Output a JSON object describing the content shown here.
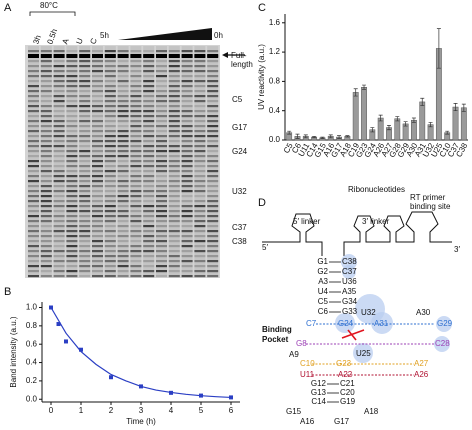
{
  "panels": [
    "A",
    "B",
    "C",
    "D"
  ],
  "gel": {
    "temperature": "80°C",
    "lanes": [
      "3h",
      "0.5h",
      "A",
      "U",
      "C",
      "5h",
      "0h"
    ],
    "full_length": [
      "Full-",
      "length"
    ],
    "bands": [
      "C5",
      "G17",
      "G24",
      "U32",
      "C37",
      "C38"
    ]
  },
  "chart_data": [
    {
      "type": "scatter",
      "xlabel": "Time (h)",
      "ylabel": "Band intensity (a.u.)",
      "xlim": [
        -0.3,
        6.3
      ],
      "ylim": [
        -0.03,
        1.06
      ],
      "xticks": [
        0,
        1,
        2,
        3,
        4,
        5,
        6
      ],
      "yticks": [
        {
          "value": 0,
          "label": "0.0"
        },
        {
          "value": 0.2,
          "label": "0.2"
        },
        {
          "value": 0.4,
          "label": "0.4"
        },
        {
          "value": 0.6,
          "label": "0.6"
        },
        {
          "value": 0.8,
          "label": "0.8"
        },
        {
          "value": 1.0,
          "label": "1.0"
        }
      ],
      "series": [
        {
          "mode": "markers",
          "color": "#2b3fc4",
          "x": [
            0,
            0.25,
            0.5,
            1,
            2,
            3,
            4,
            5,
            6
          ],
          "values": [
            1.0,
            0.82,
            0.63,
            0.54,
            0.24,
            0.14,
            0.07,
            0.04,
            0.02
          ]
        },
        {
          "mode": "line",
          "color": "#2b3fc4",
          "x": [
            0,
            0.5,
            1,
            1.5,
            2,
            2.5,
            3,
            3.5,
            4,
            4.5,
            5,
            5.5,
            6
          ],
          "values": [
            1,
            0.72,
            0.52,
            0.38,
            0.27,
            0.2,
            0.14,
            0.1,
            0.074,
            0.054,
            0.039,
            0.028,
            0.02
          ]
        }
      ]
    },
    {
      "type": "bar",
      "xlabel": "Ribonucleotides",
      "ylabel": "UV reactivity (a.u.)",
      "color": "#9a9a9a",
      "ylim": [
        0,
        1.72
      ],
      "yticks": [
        {
          "value": 0,
          "label": "0.0"
        },
        {
          "value": 0.4,
          "label": "0.4"
        },
        {
          "value": 0.8,
          "label": "0.8"
        },
        {
          "value": 1.2,
          "label": "1.2"
        },
        {
          "value": 1.6,
          "label": "1.6"
        }
      ],
      "categories": [
        "C5",
        "C6",
        "U11",
        "C14",
        "G15",
        "A16",
        "G17",
        "A18",
        "C19",
        "G23",
        "G24",
        "A26",
        "A27",
        "G28",
        "G29",
        "A30",
        "A31",
        "U32",
        "U25",
        "C10",
        "C37",
        "C38"
      ],
      "values": [
        0.1,
        0.05,
        0.05,
        0.04,
        0.03,
        0.05,
        0.04,
        0.05,
        0.65,
        0.72,
        0.14,
        0.3,
        0.17,
        0.29,
        0.22,
        0.27,
        0.52,
        0.21,
        1.25,
        0.1,
        0.45,
        0.44
      ],
      "errors": [
        0.02,
        0.03,
        0.02,
        0.01,
        0.01,
        0.02,
        0.02,
        0.01,
        0.05,
        0.03,
        0.03,
        0.04,
        0.03,
        0.03,
        0.03,
        0.03,
        0.05,
        0.03,
        0.27,
        0.02,
        0.05,
        0.05
      ]
    }
  ],
  "diagram": {
    "linker5": "5′ linker",
    "linker3": "3′ linker",
    "primer": [
      "RT primer",
      "binding site"
    ],
    "end5": "5′",
    "end3": "3′",
    "stem_top": [
      [
        "G1",
        "C38"
      ],
      [
        "G2",
        "C37"
      ],
      [
        "A3",
        "U36"
      ],
      [
        "U4",
        "A35"
      ],
      [
        "C5",
        "G34"
      ],
      [
        "C6",
        "G33"
      ]
    ],
    "pocket_label": [
      "Binding",
      "Pocket"
    ],
    "row1": [
      "C7",
      "G24",
      "A31",
      "G29"
    ],
    "u32": "U32",
    "a30": "A30",
    "row2": [
      "G8",
      "C28"
    ],
    "a9": "A9",
    "u25": "U25",
    "row3": [
      "C10",
      "G23",
      "A27"
    ],
    "row4": [
      "U11",
      "A22",
      "A26"
    ],
    "stem_bottom": [
      [
        "G12",
        "C21"
      ],
      [
        "G13",
        "C20"
      ],
      [
        "C14",
        "G19"
      ]
    ],
    "loop": [
      "G15",
      "A18",
      "A16",
      "G17"
    ]
  }
}
